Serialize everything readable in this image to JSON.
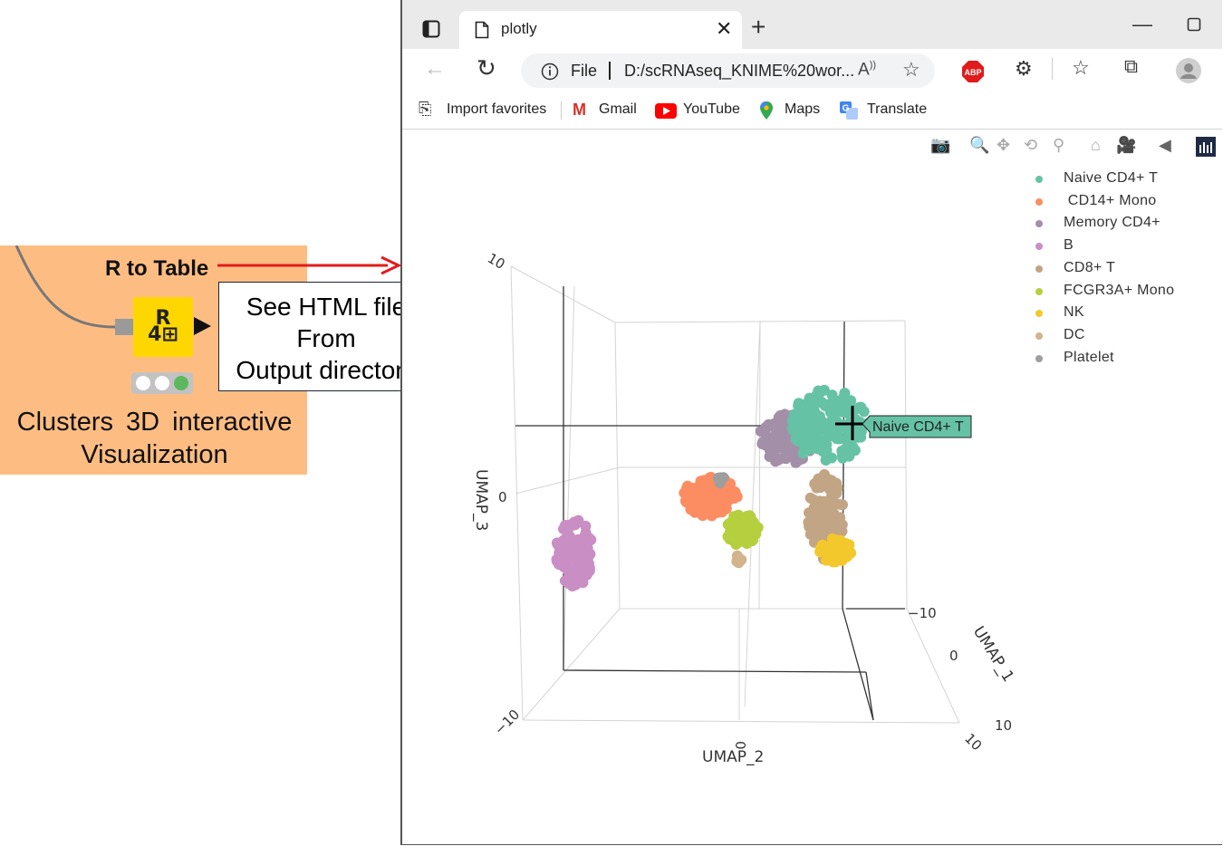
{
  "knime": {
    "node_title": "R to Table",
    "node_glyph_top": "R",
    "node_glyph_bottom": "4⊞",
    "caption_line1": "Clusters 3D interactive",
    "caption_line2": "Visualization",
    "callout_line1": "See HTML file",
    "callout_line2": "From",
    "callout_line3": "Output directory",
    "status_lights": [
      "#ffffff",
      "#ffffff",
      "#5cb85c"
    ]
  },
  "browser": {
    "tab_title": "plotly",
    "address_scheme": "File",
    "address_url": "D:/scRNAseq_KNIME%20wor...",
    "bookmarks": [
      "Import favorites",
      "Gmail",
      "YouTube",
      "Maps",
      "Translate"
    ]
  },
  "plot": {
    "axes": {
      "x_title": "UMAP_2",
      "y_title": "UMAP_1",
      "z_title": "UMAP_3",
      "x_ticks": [
        "−10",
        "0",
        "10"
      ],
      "y_ticks": [
        "−10",
        "0",
        "10"
      ],
      "z_ticks": [
        "10",
        "0"
      ]
    },
    "legend": [
      {
        "name": "Naive CD4+ T",
        "color": "#66c2a5"
      },
      {
        "name": " CD14+ Mono",
        "color": "#fc8d62"
      },
      {
        "name": "Memory CD4+",
        "color": "#a38fa8"
      },
      {
        "name": "B",
        "color": "#c98ec4"
      },
      {
        "name": "CD8+ T",
        "color": "#c2a585"
      },
      {
        "name": "FCGR3A+ Mono",
        "color": "#b5cf3e"
      },
      {
        "name": "NK",
        "color": "#f3c82c"
      },
      {
        "name": "DC",
        "color": "#d2b48c"
      },
      {
        "name": "Platelet",
        "color": "#9e9e9e"
      }
    ],
    "hover_label": "Naive CD4+ T"
  }
}
